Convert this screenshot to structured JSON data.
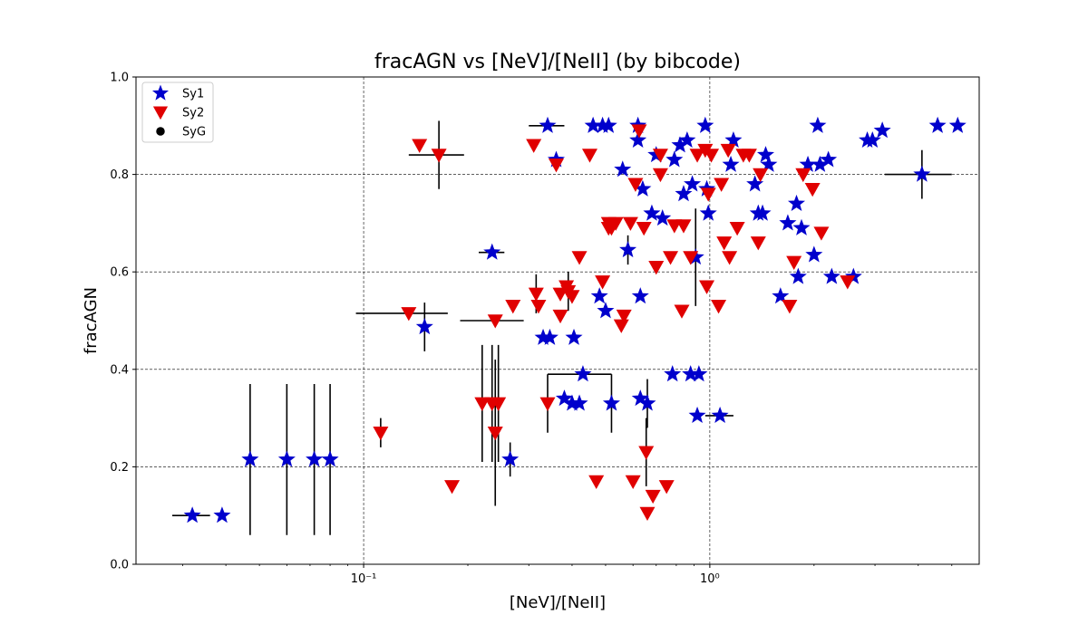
{
  "chart_data": {
    "type": "scatter",
    "title": "fracAGN vs [NeV]/[NeII] (by bibcode)",
    "xlabel": "[NeV]/[NeII]",
    "ylabel": "fracAGN",
    "x_scale": "log",
    "xlim": [
      0.022,
      6.0
    ],
    "ylim": [
      0.0,
      1.0
    ],
    "grid": true,
    "legend_position": "top-left",
    "x_ticks": [
      {
        "value": 0.1,
        "label": "10⁻¹"
      },
      {
        "value": 1.0,
        "label": "10⁰"
      }
    ],
    "y_ticks": [
      {
        "value": 0.0,
        "label": "0.0"
      },
      {
        "value": 0.2,
        "label": "0.2"
      },
      {
        "value": 0.4,
        "label": "0.4"
      },
      {
        "value": 0.6,
        "label": "0.6"
      },
      {
        "value": 0.8,
        "label": "0.8"
      },
      {
        "value": 1.0,
        "label": "1.0"
      }
    ],
    "colors": {
      "Sy1": "#0000cc",
      "Sy2": "#e00000",
      "SyG": "#000000",
      "errorbar": "#000000"
    },
    "series": [
      {
        "name": "Sy1",
        "marker": "star",
        "points": [
          {
            "x": 0.032,
            "y": 0.1,
            "xerr": 0.004
          },
          {
            "x": 0.039,
            "y": 0.1
          },
          {
            "x": 0.047,
            "y": 0.215,
            "yerr": 0.155
          },
          {
            "x": 0.06,
            "y": 0.215,
            "yerr": 0.155
          },
          {
            "x": 0.072,
            "y": 0.215,
            "yerr": 0.155
          },
          {
            "x": 0.08,
            "y": 0.215,
            "yerr": 0.155
          },
          {
            "x": 0.15,
            "y": 0.487,
            "yerr": 0.05
          },
          {
            "x": 0.235,
            "y": 0.64,
            "xerr": 0.02
          },
          {
            "x": 0.265,
            "y": 0.215,
            "yerr": 0.035
          },
          {
            "x": 0.33,
            "y": 0.465
          },
          {
            "x": 0.345,
            "y": 0.465
          },
          {
            "x": 0.34,
            "y": 0.9,
            "xerr": 0.04
          },
          {
            "x": 0.36,
            "y": 0.83
          },
          {
            "x": 0.38,
            "y": 0.34
          },
          {
            "x": 0.4,
            "y": 0.33
          },
          {
            "x": 0.405,
            "y": 0.465
          },
          {
            "x": 0.42,
            "y": 0.33
          },
          {
            "x": 0.43,
            "y": 0.39,
            "xerr": 0.09
          },
          {
            "x": 0.46,
            "y": 0.9
          },
          {
            "x": 0.48,
            "y": 0.55
          },
          {
            "x": 0.49,
            "y": 0.9
          },
          {
            "x": 0.5,
            "y": 0.52
          },
          {
            "x": 0.51,
            "y": 0.9
          },
          {
            "x": 0.52,
            "y": 0.33,
            "yerr": 0.06
          },
          {
            "x": 0.56,
            "y": 0.81
          },
          {
            "x": 0.58,
            "y": 0.645,
            "yerr": 0.03
          },
          {
            "x": 0.62,
            "y": 0.9
          },
          {
            "x": 0.62,
            "y": 0.87
          },
          {
            "x": 0.63,
            "y": 0.34
          },
          {
            "x": 0.63,
            "y": 0.55
          },
          {
            "x": 0.64,
            "y": 0.77
          },
          {
            "x": 0.66,
            "y": 0.33,
            "yerr": 0.05
          },
          {
            "x": 0.68,
            "y": 0.72
          },
          {
            "x": 0.7,
            "y": 0.84
          },
          {
            "x": 0.73,
            "y": 0.71
          },
          {
            "x": 0.78,
            "y": 0.39
          },
          {
            "x": 0.79,
            "y": 0.83
          },
          {
            "x": 0.82,
            "y": 0.86
          },
          {
            "x": 0.84,
            "y": 0.76
          },
          {
            "x": 0.86,
            "y": 0.87
          },
          {
            "x": 0.88,
            "y": 0.39
          },
          {
            "x": 0.89,
            "y": 0.78
          },
          {
            "x": 0.91,
            "y": 0.63,
            "yerr": 0.1
          },
          {
            "x": 0.92,
            "y": 0.305
          },
          {
            "x": 0.93,
            "y": 0.39
          },
          {
            "x": 0.97,
            "y": 0.9
          },
          {
            "x": 0.98,
            "y": 0.77
          },
          {
            "x": 0.99,
            "y": 0.72
          },
          {
            "x": 1.07,
            "y": 0.305,
            "xerr": 0.1
          },
          {
            "x": 1.15,
            "y": 0.82
          },
          {
            "x": 1.17,
            "y": 0.87
          },
          {
            "x": 1.35,
            "y": 0.78
          },
          {
            "x": 1.38,
            "y": 0.72
          },
          {
            "x": 1.42,
            "y": 0.72
          },
          {
            "x": 1.45,
            "y": 0.84
          },
          {
            "x": 1.48,
            "y": 0.82
          },
          {
            "x": 1.6,
            "y": 0.55
          },
          {
            "x": 1.68,
            "y": 0.7
          },
          {
            "x": 1.78,
            "y": 0.74
          },
          {
            "x": 1.8,
            "y": 0.59
          },
          {
            "x": 1.84,
            "y": 0.69
          },
          {
            "x": 1.92,
            "y": 0.82
          },
          {
            "x": 2.0,
            "y": 0.635
          },
          {
            "x": 2.05,
            "y": 0.9
          },
          {
            "x": 2.08,
            "y": 0.82
          },
          {
            "x": 2.2,
            "y": 0.83
          },
          {
            "x": 2.25,
            "y": 0.59
          },
          {
            "x": 2.6,
            "y": 0.59
          },
          {
            "x": 2.85,
            "y": 0.87
          },
          {
            "x": 2.95,
            "y": 0.87
          },
          {
            "x": 3.15,
            "y": 0.89
          },
          {
            "x": 4.1,
            "y": 0.8,
            "xerr": 0.9,
            "yerr": 0.05
          },
          {
            "x": 4.55,
            "y": 0.9
          },
          {
            "x": 5.2,
            "y": 0.9
          }
        ]
      },
      {
        "name": "Sy2",
        "marker": "triangle-down",
        "points": [
          {
            "x": 0.112,
            "y": 0.27,
            "yerr": 0.03
          },
          {
            "x": 0.135,
            "y": 0.515,
            "xerr": 0.04
          },
          {
            "x": 0.145,
            "y": 0.86
          },
          {
            "x": 0.165,
            "y": 0.84,
            "xerr": 0.03,
            "yerr": 0.07
          },
          {
            "x": 0.18,
            "y": 0.16
          },
          {
            "x": 0.22,
            "y": 0.33,
            "yerr": 0.12
          },
          {
            "x": 0.235,
            "y": 0.33,
            "yerr": 0.12
          },
          {
            "x": 0.24,
            "y": 0.27,
            "yerr": 0.15
          },
          {
            "x": 0.245,
            "y": 0.33,
            "yerr": 0.12
          },
          {
            "x": 0.24,
            "y": 0.5,
            "xerr": 0.05
          },
          {
            "x": 0.27,
            "y": 0.53
          },
          {
            "x": 0.31,
            "y": 0.86
          },
          {
            "x": 0.315,
            "y": 0.555,
            "yerr": 0.04
          },
          {
            "x": 0.32,
            "y": 0.53
          },
          {
            "x": 0.34,
            "y": 0.33,
            "yerr": 0.06
          },
          {
            "x": 0.36,
            "y": 0.82
          },
          {
            "x": 0.37,
            "y": 0.555
          },
          {
            "x": 0.37,
            "y": 0.51
          },
          {
            "x": 0.385,
            "y": 0.57
          },
          {
            "x": 0.39,
            "y": 0.56,
            "yerr": 0.04
          },
          {
            "x": 0.4,
            "y": 0.55
          },
          {
            "x": 0.42,
            "y": 0.63
          },
          {
            "x": 0.45,
            "y": 0.84
          },
          {
            "x": 0.47,
            "y": 0.17
          },
          {
            "x": 0.49,
            "y": 0.58
          },
          {
            "x": 0.51,
            "y": 0.7
          },
          {
            "x": 0.51,
            "y": 0.69
          },
          {
            "x": 0.52,
            "y": 0.69
          },
          {
            "x": 0.535,
            "y": 0.7
          },
          {
            "x": 0.555,
            "y": 0.49
          },
          {
            "x": 0.565,
            "y": 0.51
          },
          {
            "x": 0.59,
            "y": 0.7
          },
          {
            "x": 0.6,
            "y": 0.17
          },
          {
            "x": 0.61,
            "y": 0.78
          },
          {
            "x": 0.625,
            "y": 0.89
          },
          {
            "x": 0.645,
            "y": 0.69
          },
          {
            "x": 0.655,
            "y": 0.23,
            "yerr": 0.07
          },
          {
            "x": 0.66,
            "y": 0.105
          },
          {
            "x": 0.685,
            "y": 0.14
          },
          {
            "x": 0.7,
            "y": 0.61
          },
          {
            "x": 0.72,
            "y": 0.8
          },
          {
            "x": 0.72,
            "y": 0.84
          },
          {
            "x": 0.75,
            "y": 0.16
          },
          {
            "x": 0.77,
            "y": 0.63
          },
          {
            "x": 0.79,
            "y": 0.695
          },
          {
            "x": 0.83,
            "y": 0.52
          },
          {
            "x": 0.84,
            "y": 0.695
          },
          {
            "x": 0.88,
            "y": 0.63
          },
          {
            "x": 0.92,
            "y": 0.84
          },
          {
            "x": 0.97,
            "y": 0.85
          },
          {
            "x": 0.98,
            "y": 0.57
          },
          {
            "x": 0.99,
            "y": 0.76
          },
          {
            "x": 1.01,
            "y": 0.84
          },
          {
            "x": 1.06,
            "y": 0.53
          },
          {
            "x": 1.08,
            "y": 0.78
          },
          {
            "x": 1.1,
            "y": 0.66
          },
          {
            "x": 1.13,
            "y": 0.85
          },
          {
            "x": 1.14,
            "y": 0.63
          },
          {
            "x": 1.2,
            "y": 0.69
          },
          {
            "x": 1.25,
            "y": 0.84
          },
          {
            "x": 1.3,
            "y": 0.84
          },
          {
            "x": 1.38,
            "y": 0.66
          },
          {
            "x": 1.4,
            "y": 0.8
          },
          {
            "x": 1.7,
            "y": 0.53
          },
          {
            "x": 1.75,
            "y": 0.62
          },
          {
            "x": 1.86,
            "y": 0.8
          },
          {
            "x": 1.98,
            "y": 0.77
          },
          {
            "x": 2.1,
            "y": 0.68
          },
          {
            "x": 2.5,
            "y": 0.58
          }
        ]
      },
      {
        "name": "SyG",
        "marker": "circle",
        "points": []
      }
    ]
  }
}
